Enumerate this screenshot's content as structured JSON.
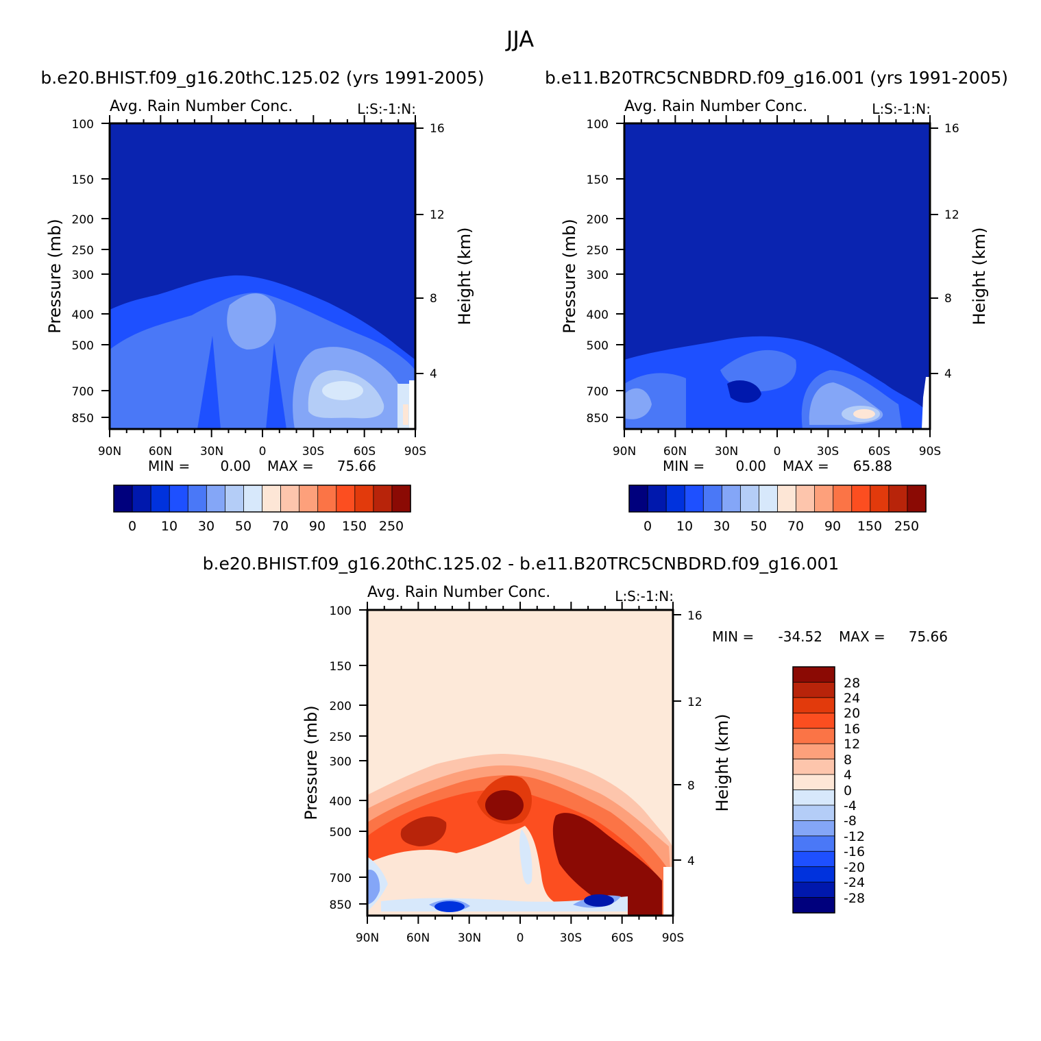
{
  "page_title": "JJA",
  "chart_data": [
    {
      "type": "heatmap",
      "case_title": "b.e20.BHIST.f09_g16.20thC.125.02 (yrs 1991-2005)",
      "variable": "Avg. Rain Number Conc.",
      "tag": "L:S:-1:N:",
      "xlabel": "",
      "ylabel": "Pressure (mb)",
      "y2label": "Height (km)",
      "x_ticks": [
        "90N",
        "60N",
        "30N",
        "0",
        "30S",
        "60S",
        "90S"
      ],
      "y_ticks": [
        100,
        150,
        200,
        250,
        300,
        400,
        500,
        700,
        850
      ],
      "y_tick_labels": [
        "100",
        "150",
        "200",
        "250",
        "300",
        "400",
        "500",
        "700",
        "850"
      ],
      "y2_ticks": [
        16,
        12,
        8,
        4
      ],
      "y2_tick_labels": [
        "16",
        "12",
        "8",
        "4"
      ],
      "ylim": [
        100,
        1000
      ],
      "min_label": "MIN =",
      "min": "0.00",
      "max_label": "MAX =",
      "max": "75.66",
      "colorbar_labels": [
        "0",
        "10",
        "30",
        "50",
        "70",
        "90",
        "150",
        "250"
      ],
      "features": [
        {
          "lat": 10,
          "p": 430,
          "value": 50
        },
        {
          "lat": -32,
          "p": 690,
          "value": 60
        },
        {
          "lat": -80,
          "p": 820,
          "value": 75
        }
      ]
    },
    {
      "type": "heatmap",
      "case_title": "b.e11.B20TRC5CNBDRD.f09_g16.001 (yrs 1991-2005)",
      "variable": "Avg. Rain Number Conc.",
      "tag": "L:S:-1:N:",
      "xlabel": "",
      "ylabel": "Pressure (mb)",
      "y2label": "Height (km)",
      "x_ticks": [
        "90N",
        "60N",
        "30N",
        "0",
        "30S",
        "60S",
        "90S"
      ],
      "y_ticks": [
        100,
        150,
        200,
        250,
        300,
        400,
        500,
        700,
        850
      ],
      "y_tick_labels": [
        "100",
        "150",
        "200",
        "250",
        "300",
        "400",
        "500",
        "700",
        "850"
      ],
      "y2_ticks": [
        16,
        12,
        8,
        4
      ],
      "y2_tick_labels": [
        "16",
        "12",
        "8",
        "4"
      ],
      "ylim": [
        100,
        1000
      ],
      "min_label": "MIN =",
      "min": "0.00",
      "max_label": "MAX =",
      "max": "65.88",
      "colorbar_labels": [
        "0",
        "10",
        "30",
        "50",
        "70",
        "90",
        "150",
        "250"
      ],
      "features": [
        {
          "lat": -55,
          "p": 830,
          "value": 65
        },
        {
          "lat": -35,
          "p": 700,
          "value": 50
        },
        {
          "lat": 80,
          "p": 760,
          "value": 45
        }
      ]
    },
    {
      "type": "heatmap",
      "case_title": "b.e20.BHIST.f09_g16.20thC.125.02 - b.e11.B20TRC5CNBDRD.f09_g16.001",
      "variable": "Avg. Rain Number Conc.",
      "tag": "L:S:-1:N:",
      "xlabel": "",
      "ylabel": "Pressure (mb)",
      "y2label": "Height (km)",
      "x_ticks": [
        "90N",
        "60N",
        "30N",
        "0",
        "30S",
        "60S",
        "90S"
      ],
      "y_ticks": [
        100,
        150,
        200,
        250,
        300,
        400,
        500,
        700,
        850
      ],
      "y_tick_labels": [
        "100",
        "150",
        "200",
        "250",
        "300",
        "400",
        "500",
        "700",
        "850"
      ],
      "y2_ticks": [
        16,
        12,
        8,
        4
      ],
      "y2_tick_labels": [
        "16",
        "12",
        "8",
        "4"
      ],
      "ylim": [
        100,
        1000
      ],
      "min_label": "MIN =",
      "min": "-34.52",
      "max_label": "MAX =",
      "max": "75.66",
      "colorbar_labels": [
        "28",
        "24",
        "20",
        "16",
        "12",
        "8",
        "4",
        "0",
        "-4",
        "-8",
        "-12",
        "-16",
        "-20",
        "-24",
        "-28"
      ],
      "features": [
        {
          "lat": 10,
          "p": 420,
          "value": 30
        },
        {
          "lat": -40,
          "p": 560,
          "value": 30
        },
        {
          "lat": -45,
          "p": 820,
          "value": -28
        },
        {
          "lat": 45,
          "p": 860,
          "value": -28
        }
      ]
    }
  ],
  "colors": {
    "seq_palette": [
      "#00007d",
      "#0018ad",
      "#0032dd",
      "#1e50ff",
      "#4a78f7",
      "#84a6f7",
      "#b4cdf7",
      "#d7e8fb",
      "#fde6d6",
      "#fdc5ac",
      "#fda07b",
      "#fb7446",
      "#fc4e20",
      "#e23a0c",
      "#b8240a",
      "#8b0a04"
    ],
    "diff_palette": [
      "#8b0a04",
      "#b8240a",
      "#e23a0c",
      "#fc4e20",
      "#fb7446",
      "#fda07b",
      "#fdc5ac",
      "#fde6d6",
      "#d7e8fb",
      "#b4cdf7",
      "#84a6f7",
      "#4a78f7",
      "#1e50ff",
      "#0032dd",
      "#0018ad",
      "#00007d"
    ],
    "background_seq": "#0a24b0",
    "background_diff": "#fde9d9"
  }
}
